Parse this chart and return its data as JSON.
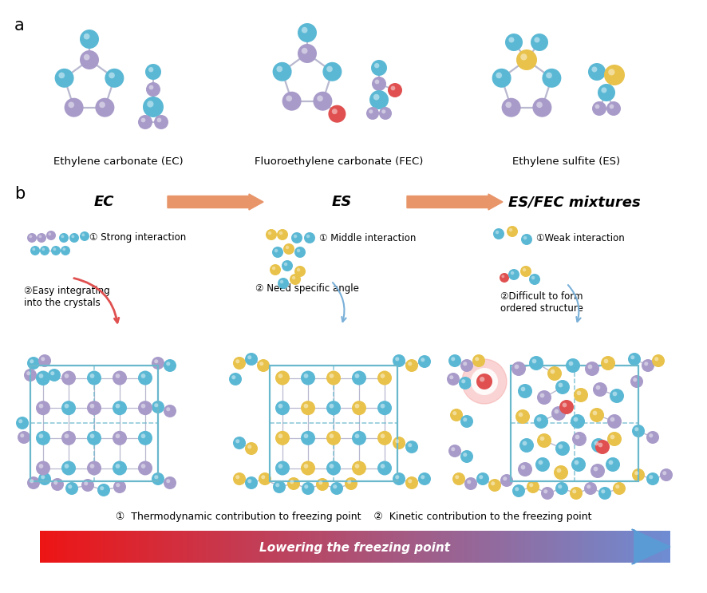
{
  "bg_color": "#ffffff",
  "blue": "#5BB8D4",
  "purple": "#A89BC9",
  "yellow": "#E8C24A",
  "red": "#E05050",
  "orange_arrow": "#E8956A",
  "bond_color": "#b8b8d0",
  "label_a": "a",
  "label_b": "b",
  "ec_label": "Ethylene carbonate (EC)",
  "fec_label": "Fluoroethylene carbonate (FEC)",
  "es_label": "Ethylene sulfite (ES)",
  "col1_title": "EC",
  "col2_title": "ES",
  "col3_title": "ES/FEC mixtures",
  "row1_col1_text": "① Strong interaction",
  "row1_col2_text": "① Middle interaction",
  "row1_col3_text": "①Weak interaction",
  "row2_col1_text": "②Easy integrating\ninto the crystals",
  "row2_col2_text": "② Need specific angle",
  "row2_col3_text": "②Difficult to form\nordered structure",
  "footer_text": "①  Thermodynamic contribution to freezing point    ②  Kinetic contribution to the freezing point",
  "arrow_text": "Lowering the freezing point"
}
